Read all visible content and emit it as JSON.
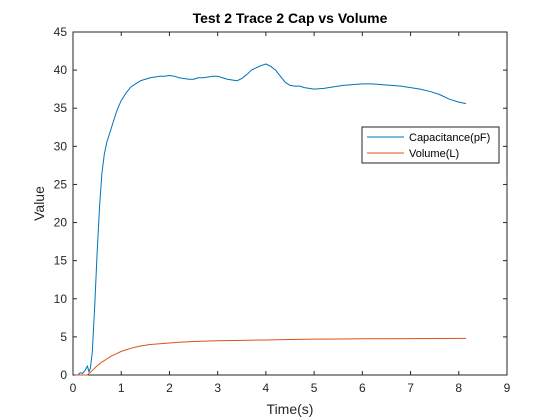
{
  "chart_data": {
    "type": "line",
    "title": "Test 2 Trace 2 Cap vs Volume",
    "xlabel": "Time(s)",
    "ylabel": "Value",
    "xlim": [
      0,
      9
    ],
    "ylim": [
      0,
      45
    ],
    "xticks": [
      0,
      1,
      2,
      3,
      4,
      5,
      6,
      7,
      8,
      9
    ],
    "yticks": [
      0,
      5,
      10,
      15,
      20,
      25,
      30,
      35,
      40,
      45
    ],
    "grid": false,
    "legend_position": "right",
    "series": [
      {
        "name": "Capacitance(pF)",
        "color": "#0072BD",
        "x": [
          0.05,
          0.1,
          0.15,
          0.2,
          0.25,
          0.3,
          0.33,
          0.36,
          0.4,
          0.45,
          0.5,
          0.55,
          0.6,
          0.65,
          0.7,
          0.75,
          0.8,
          0.85,
          0.9,
          0.95,
          1.0,
          1.1,
          1.2,
          1.3,
          1.4,
          1.5,
          1.6,
          1.7,
          1.8,
          1.9,
          2.0,
          2.1,
          2.2,
          2.3,
          2.4,
          2.5,
          2.6,
          2.7,
          2.8,
          2.9,
          3.0,
          3.1,
          3.2,
          3.3,
          3.4,
          3.5,
          3.6,
          3.7,
          3.8,
          3.9,
          4.0,
          4.1,
          4.2,
          4.3,
          4.4,
          4.5,
          4.6,
          4.7,
          4.8,
          4.9,
          5.0,
          5.2,
          5.4,
          5.6,
          5.8,
          6.0,
          6.2,
          6.4,
          6.6,
          6.8,
          7.0,
          7.2,
          7.4,
          7.6,
          7.8,
          8.0,
          8.15
        ],
        "y": [
          0.0,
          0.0,
          0.3,
          0.2,
          0.6,
          1.2,
          0.4,
          0.9,
          3.0,
          9.0,
          16.0,
          22.0,
          26.5,
          29.0,
          30.5,
          31.5,
          32.5,
          33.5,
          34.5,
          35.3,
          36.0,
          37.0,
          37.8,
          38.2,
          38.6,
          38.8,
          39.0,
          39.1,
          39.2,
          39.2,
          39.3,
          39.2,
          39.0,
          38.9,
          38.8,
          38.8,
          39.0,
          39.0,
          39.1,
          39.2,
          39.2,
          39.0,
          38.8,
          38.7,
          38.6,
          38.9,
          39.4,
          40.0,
          40.3,
          40.6,
          40.8,
          40.5,
          40.0,
          39.2,
          38.4,
          38.0,
          37.9,
          37.9,
          37.7,
          37.6,
          37.5,
          37.6,
          37.8,
          38.0,
          38.1,
          38.2,
          38.2,
          38.1,
          38.0,
          37.9,
          37.7,
          37.5,
          37.2,
          36.8,
          36.2,
          35.8,
          35.6
        ]
      },
      {
        "name": "Volume(L)",
        "color": "#D95319",
        "x": [
          0.05,
          0.3,
          0.4,
          0.5,
          0.6,
          0.7,
          0.8,
          0.9,
          1.0,
          1.1,
          1.2,
          1.4,
          1.6,
          1.8,
          2.0,
          2.2,
          2.5,
          3.0,
          3.5,
          4.0,
          4.5,
          5.0,
          5.5,
          6.0,
          6.5,
          7.0,
          7.5,
          8.0,
          8.15
        ],
        "y": [
          0.0,
          0.0,
          0.6,
          1.2,
          1.7,
          2.1,
          2.5,
          2.8,
          3.1,
          3.3,
          3.5,
          3.8,
          4.0,
          4.1,
          4.2,
          4.3,
          4.4,
          4.5,
          4.55,
          4.6,
          4.65,
          4.7,
          4.72,
          4.75,
          4.76,
          4.78,
          4.79,
          4.8,
          4.8
        ]
      }
    ]
  }
}
